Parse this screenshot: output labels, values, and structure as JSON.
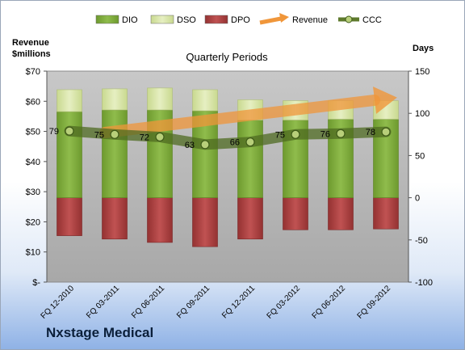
{
  "company": "Nxstage Medical",
  "chart_data": {
    "type": "bar",
    "title": "Quarterly Periods",
    "categories": [
      "FQ 12-2010",
      "FQ 03-2011",
      "FQ 06-2011",
      "FQ 09-2011",
      "FQ 12-2011",
      "FQ 03-2012",
      "FQ 06-2012",
      "FQ 09-2012"
    ],
    "y_left": {
      "label_line1": "Revenue",
      "label_line2": "$millions",
      "range": [
        0,
        70
      ],
      "ticks": [
        0,
        10,
        20,
        30,
        40,
        50,
        60,
        70
      ],
      "tick_labels": [
        "$-",
        "$10",
        "$20",
        "$30",
        "$40",
        "$50",
        "$60",
        "$70"
      ]
    },
    "y_right": {
      "label": "Days",
      "range": [
        -100,
        150
      ],
      "ticks": [
        -100,
        -50,
        0,
        50,
        100,
        150
      ],
      "tick_labels": [
        "-100",
        "-50",
        "0",
        "50",
        "100",
        "150"
      ]
    },
    "legend": {
      "position": "top",
      "entries": [
        {
          "key": "dio",
          "label": "DIO"
        },
        {
          "key": "dso",
          "label": "DSO"
        },
        {
          "key": "dpo",
          "label": "DPO"
        },
        {
          "key": "revenue",
          "label": "Revenue"
        },
        {
          "key": "ccc",
          "label": "CCC"
        }
      ]
    },
    "series": [
      {
        "key": "dio",
        "name": "DIO",
        "axis": "days",
        "color": "#7aa33a",
        "values": [
          102,
          104,
          104,
          103,
          92,
          92,
          93,
          93
        ]
      },
      {
        "key": "dso",
        "name": "DSO",
        "axis": "days",
        "color": "#d7e4a6",
        "values": [
          26,
          25,
          26,
          25,
          24,
          23,
          22,
          22
        ]
      },
      {
        "key": "dpo",
        "name": "DPO",
        "axis": "days",
        "color": "#a93f3f",
        "values": [
          45,
          49,
          53,
          58,
          49,
          38,
          38,
          37
        ]
      },
      {
        "key": "ccc",
        "name": "CCC",
        "axis": "days",
        "color": "#5e7a2c",
        "values": [
          79,
          75,
          72,
          63,
          66,
          75,
          76,
          78
        ],
        "data_labels": [
          "79",
          "75",
          "72",
          "63",
          "66",
          "75",
          "76",
          "78"
        ]
      }
    ],
    "revenue_trend": {
      "name": "Revenue",
      "color": "#f0963a",
      "direction": "up"
    },
    "grid": false,
    "plot_background": "#b9b9b9"
  }
}
